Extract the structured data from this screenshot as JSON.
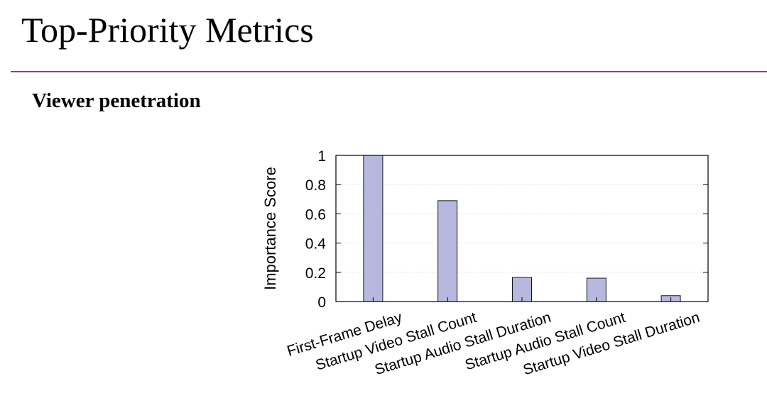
{
  "slide": {
    "title": "Top-Priority Metrics",
    "subtitle": "Viewer penetration",
    "accent_color": "#9b3a8f"
  },
  "chart_data": {
    "type": "bar",
    "title": "",
    "xlabel": "",
    "ylabel": "Importance Score",
    "categories": [
      "First-Frame Delay",
      "Startup Video Stall Count",
      "Startup Audio Stall Duration",
      "Startup Audio Stall Count",
      "Startup Video Stall Duration"
    ],
    "values": [
      1.0,
      0.69,
      0.165,
      0.16,
      0.04
    ],
    "ylim": [
      0,
      1
    ],
    "yticks": [
      "0",
      "0.2",
      "0.4",
      "0.6",
      "0.8",
      "1"
    ],
    "grid": true,
    "bar_color": "#b7b8e0"
  }
}
